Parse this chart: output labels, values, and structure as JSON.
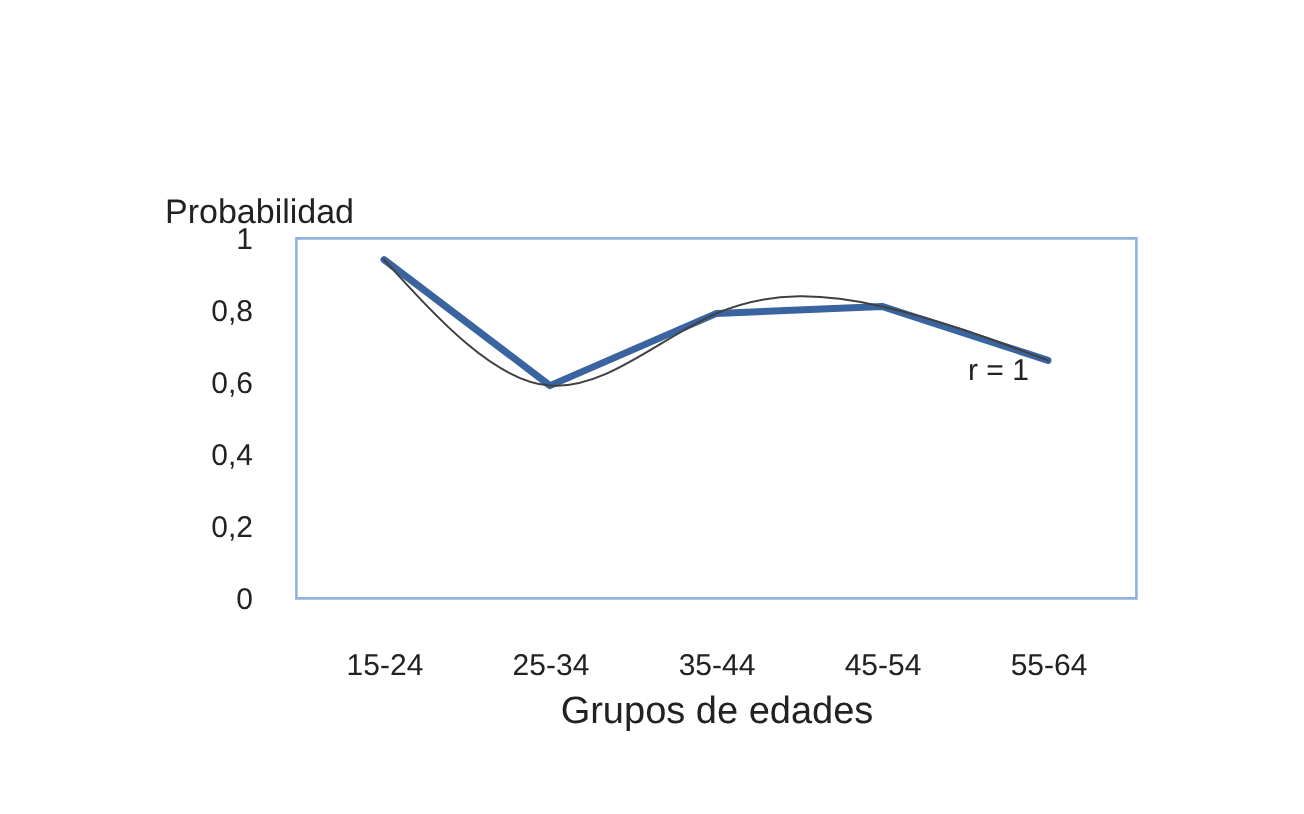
{
  "chart_data": {
    "type": "line",
    "xlabel": "Grupos de edades",
    "ylabel": "Probabilidad",
    "categories": [
      "15-24",
      "25-34",
      "35-44",
      "45-54",
      "55-64"
    ],
    "series": [
      {
        "color": "#3a64a0",
        "values": [
          0.94,
          0.59,
          0.79,
          0.81,
          0.66
        ]
      },
      {
        "color": "#404040",
        "x": [
          "15-24",
          "25-34",
          "35-44",
          "45-54",
          "55-64"
        ],
        "values": [
          0.94,
          0.59,
          0.79,
          0.81,
          0.66
        ]
      }
    ],
    "ylim": [
      0,
      1
    ],
    "yticks": [
      {
        "value": 0,
        "label": "0"
      },
      {
        "value": 0.2,
        "label": "0,2"
      },
      {
        "value": 0.4,
        "label": "0,4"
      },
      {
        "value": 0.6,
        "label": "0,6"
      },
      {
        "value": 0.8,
        "label": "0,8"
      },
      {
        "value": 1,
        "label": "1"
      }
    ],
    "grid": false,
    "marker": "none",
    "annotations": [
      "r = 1"
    ]
  }
}
